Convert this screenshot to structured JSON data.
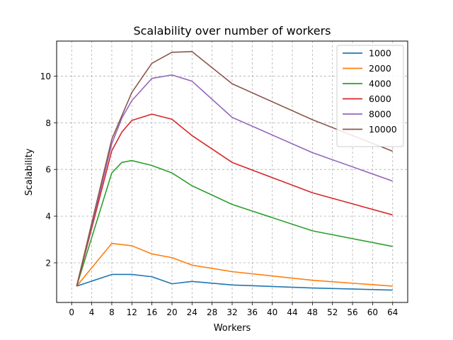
{
  "chart_data": {
    "type": "line",
    "title": "Scalability over number of workers",
    "xlabel": "Workers",
    "ylabel": "Scalability",
    "xlim": [
      -3,
      67
    ],
    "ylim": [
      0.3,
      11.5
    ],
    "xticks": [
      0,
      4,
      8,
      12,
      16,
      20,
      24,
      28,
      32,
      36,
      40,
      44,
      48,
      52,
      56,
      60,
      64
    ],
    "yticks": [
      2,
      4,
      6,
      8,
      10
    ],
    "grid": true,
    "legend_position": "top-right",
    "series": [
      {
        "name": "1000",
        "color": "#1f77b4",
        "points": [
          [
            1,
            1.0
          ],
          [
            8,
            1.5
          ],
          [
            12,
            1.5
          ],
          [
            16,
            1.4
          ],
          [
            20,
            1.1
          ],
          [
            24,
            1.2
          ],
          [
            32,
            1.05
          ],
          [
            48,
            0.92
          ],
          [
            64,
            0.83
          ]
        ]
      },
      {
        "name": "2000",
        "color": "#ff7f0e",
        "points": [
          [
            1,
            1.0
          ],
          [
            8,
            2.83
          ],
          [
            12,
            2.73
          ],
          [
            16,
            2.38
          ],
          [
            20,
            2.22
          ],
          [
            24,
            1.9
          ],
          [
            32,
            1.62
          ],
          [
            48,
            1.25
          ],
          [
            64,
            1.0
          ]
        ]
      },
      {
        "name": "4000",
        "color": "#2ca02c",
        "points": [
          [
            1,
            1.0
          ],
          [
            8,
            5.85
          ],
          [
            10,
            6.3
          ],
          [
            12,
            6.38
          ],
          [
            16,
            6.17
          ],
          [
            20,
            5.85
          ],
          [
            24,
            5.3
          ],
          [
            32,
            4.5
          ],
          [
            48,
            3.37
          ],
          [
            64,
            2.7
          ]
        ]
      },
      {
        "name": "6000",
        "color": "#d62728",
        "points": [
          [
            1,
            1.0
          ],
          [
            8,
            6.8
          ],
          [
            10,
            7.6
          ],
          [
            12,
            8.1
          ],
          [
            16,
            8.37
          ],
          [
            20,
            8.15
          ],
          [
            24,
            7.45
          ],
          [
            32,
            6.3
          ],
          [
            48,
            5.0
          ],
          [
            64,
            4.05
          ]
        ]
      },
      {
        "name": "8000",
        "color": "#9467bd",
        "points": [
          [
            1,
            1.0
          ],
          [
            8,
            7.1
          ],
          [
            10,
            8.2
          ],
          [
            12,
            8.95
          ],
          [
            16,
            9.9
          ],
          [
            20,
            10.05
          ],
          [
            24,
            9.78
          ],
          [
            32,
            8.23
          ],
          [
            48,
            6.72
          ],
          [
            64,
            5.5
          ]
        ]
      },
      {
        "name": "10000",
        "color": "#8c564b",
        "points": [
          [
            1,
            1.0
          ],
          [
            8,
            7.3
          ],
          [
            10,
            8.3
          ],
          [
            12,
            9.3
          ],
          [
            16,
            10.55
          ],
          [
            20,
            11.02
          ],
          [
            24,
            11.05
          ],
          [
            32,
            9.67
          ],
          [
            48,
            8.13
          ],
          [
            64,
            6.78
          ]
        ]
      }
    ]
  }
}
